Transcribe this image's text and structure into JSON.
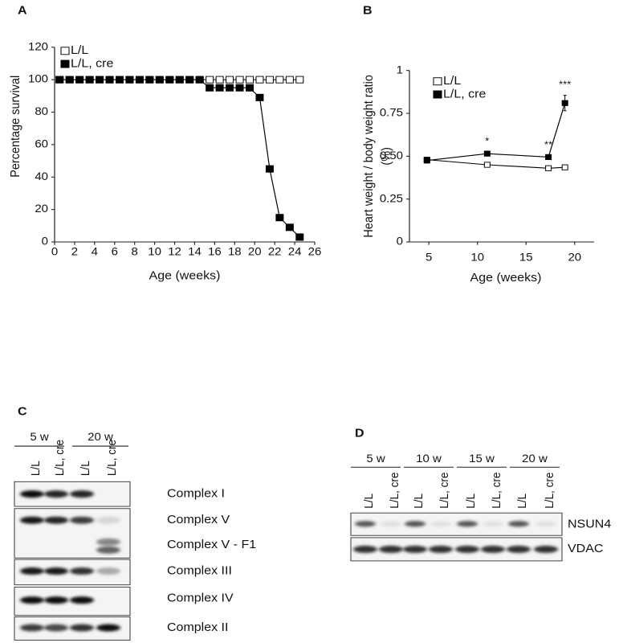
{
  "panels": [
    "A",
    "B",
    "C",
    "D"
  ],
  "chart_data": [
    {
      "type": "line",
      "xlabel": "Age (weeks)",
      "ylabel": "Percentage survival",
      "x": [
        0.5,
        1.5,
        2.5,
        3.5,
        4.5,
        5.5,
        6.5,
        7.5,
        8.5,
        9.5,
        10.5,
        11.5,
        12.5,
        13.5,
        14.5,
        15.5,
        16.5,
        17.5,
        18.5,
        19.5,
        20.5,
        21.5,
        22.5,
        23.5,
        24.5
      ],
      "xlim": [
        0,
        26
      ],
      "xticks": [
        0,
        2,
        4,
        6,
        8,
        10,
        12,
        14,
        16,
        18,
        20,
        22,
        24,
        26
      ],
      "ylim": [
        0,
        120
      ],
      "yticks": [
        0,
        20,
        40,
        60,
        80,
        100,
        120
      ],
      "legend": "upper left",
      "series": [
        {
          "name": "L/L",
          "color": "#000000",
          "marker": "open-square",
          "values": [
            100,
            100,
            100,
            100,
            100,
            100,
            100,
            100,
            100,
            100,
            100,
            100,
            100,
            100,
            100,
            100,
            100,
            100,
            100,
            100,
            100,
            100,
            100,
            100,
            100
          ]
        },
        {
          "name": "L/L, cre",
          "color": "#000000",
          "marker": "filled-square",
          "values": [
            100,
            100,
            100,
            100,
            100,
            100,
            100,
            100,
            100,
            100,
            100,
            100,
            100,
            100,
            100,
            95,
            95,
            95,
            95,
            95,
            89,
            45,
            15,
            9,
            3
          ]
        }
      ]
    },
    {
      "type": "line",
      "xlabel": "Age (weeks)",
      "ylabel": [
        "Heart weight / body weight ratio",
        "(%)"
      ],
      "x": [
        4.8,
        11,
        17.3,
        19
      ],
      "xlim": [
        3,
        22
      ],
      "xticks": [
        5,
        10,
        15,
        20
      ],
      "ylim": [
        0,
        1
      ],
      "yticks": [
        0,
        0.25,
        {
          "value": 0.5,
          "label": "0.50"
        },
        0.75,
        1
      ],
      "legend": "upper left",
      "series": [
        {
          "name": "L/L",
          "color": "#000000",
          "marker": "open-square",
          "values": [
            0.48,
            0.45,
            0.43,
            0.435
          ]
        },
        {
          "name": "L/L, cre",
          "color": "#000000",
          "marker": "filled-square",
          "values": [
            0.475,
            0.515,
            0.495,
            0.81
          ],
          "errors": [
            0.015,
            0.01,
            0.008,
            0.045
          ],
          "annotations": [
            null,
            "*",
            "**",
            "***"
          ]
        }
      ]
    }
  ],
  "blot_c": {
    "groups": [
      "5 w",
      "20 w"
    ],
    "lanes": [
      "L/L",
      "L/L, cre",
      "L/L",
      "L/L, cre"
    ],
    "bands": [
      "Complex I",
      "Complex V",
      "Complex V - F1",
      "Complex III",
      "Complex IV",
      "Complex II"
    ]
  },
  "blot_d": {
    "groups": [
      "5 w",
      "10 w",
      "15 w",
      "20 w"
    ],
    "lanes": [
      "L/L",
      "L/L, cre",
      "L/L",
      "L/L, cre",
      "L/L",
      "L/L, cre",
      "L/L",
      "L/L, cre"
    ],
    "bands": [
      "NSUN4",
      "VDAC"
    ]
  }
}
